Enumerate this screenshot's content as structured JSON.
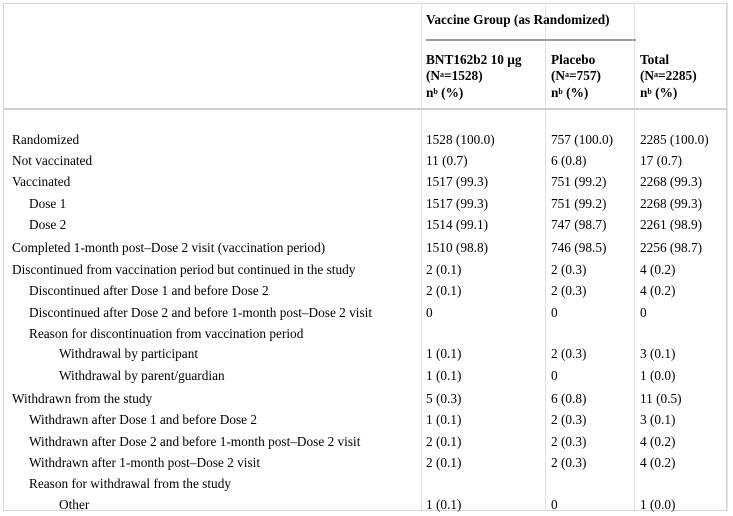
{
  "header": {
    "group_title": "Vaccine Group (as Randomized)",
    "columns": [
      {
        "name": "BNT162b2 10 µg",
        "n": "(N",
        "n_sup": "a",
        "n_rest": "=1528)",
        "stat": "n",
        "stat_sup": "b",
        "stat_rest": " (%)"
      },
      {
        "name": "Placebo",
        "n": "(N",
        "n_sup": "a",
        "n_rest": "=757)",
        "stat": "n",
        "stat_sup": "b",
        "stat_rest": " (%)"
      },
      {
        "name": "Total",
        "n": "(N",
        "n_sup": "a",
        "n_rest": "=2285)",
        "stat": "n",
        "stat_sup": "b",
        "stat_rest": " (%)"
      }
    ]
  },
  "rows": [
    {
      "label": "Randomized",
      "values": [
        "1528 (100.0)",
        "757 (100.0)",
        "2285 (100.0)"
      ]
    },
    {
      "label": "Not vaccinated",
      "values": [
        "11 (0.7)",
        "6 (0.8)",
        "17 (0.7)"
      ]
    },
    {
      "label": "Vaccinated",
      "values": [
        "1517 (99.3)",
        "751 (99.2)",
        "2268 (99.3)"
      ]
    },
    {
      "label": "Dose 1",
      "values": [
        "1517 (99.3)",
        "751 (99.2)",
        "2268 (99.3)"
      ]
    },
    {
      "label": "Dose 2",
      "values": [
        "1514 (99.1)",
        "747 (98.7)",
        "2261 (98.9)"
      ]
    },
    {
      "label": "Completed 1-month post–Dose 2 visit (vaccination period)",
      "values": [
        "1510 (98.8)",
        "746 (98.5)",
        "2256 (98.7)"
      ]
    },
    {
      "label": "Discontinued from vaccination period but continued in the study",
      "values": [
        "2 (0.1)",
        "2 (0.3)",
        "4 (0.2)"
      ]
    },
    {
      "label": "Discontinued after Dose 1 and before Dose 2",
      "values": [
        "2 (0.1)",
        "2 (0.3)",
        "4 (0.2)"
      ]
    },
    {
      "label": "Discontinued after Dose 2 and before 1-month post–Dose 2 visit",
      "values": [
        "0",
        "0",
        "0"
      ]
    },
    {
      "label": "Reason for discontinuation from vaccination period",
      "values": [
        "",
        "",
        ""
      ]
    },
    {
      "label": "Withdrawal by participant",
      "values": [
        "1 (0.1)",
        "2 (0.3)",
        "3 (0.1)"
      ]
    },
    {
      "label": "Withdrawal by parent/guardian",
      "values": [
        "1 (0.1)",
        "0",
        "1 (0.0)"
      ]
    },
    {
      "label": "Withdrawn from the study",
      "values": [
        "5 (0.3)",
        "6 (0.8)",
        "11 (0.5)"
      ]
    },
    {
      "label": "Withdrawn after Dose 1 and before Dose 2",
      "values": [
        "1 (0.1)",
        "2 (0.3)",
        "3 (0.1)"
      ]
    },
    {
      "label": "Withdrawn after Dose 2 and before 1-month post–Dose 2 visit",
      "values": [
        "2 (0.1)",
        "2 (0.3)",
        "4 (0.2)"
      ]
    },
    {
      "label": "Withdrawn after 1-month post–Dose 2 visit",
      "values": [
        "2 (0.1)",
        "2 (0.3)",
        "4 (0.2)"
      ]
    },
    {
      "label": "Reason for withdrawal from the study",
      "values": [
        "",
        "",
        ""
      ]
    },
    {
      "label": "Other",
      "values": [
        "1 (0.1)",
        "0",
        "1 (0.0)"
      ]
    }
  ]
}
